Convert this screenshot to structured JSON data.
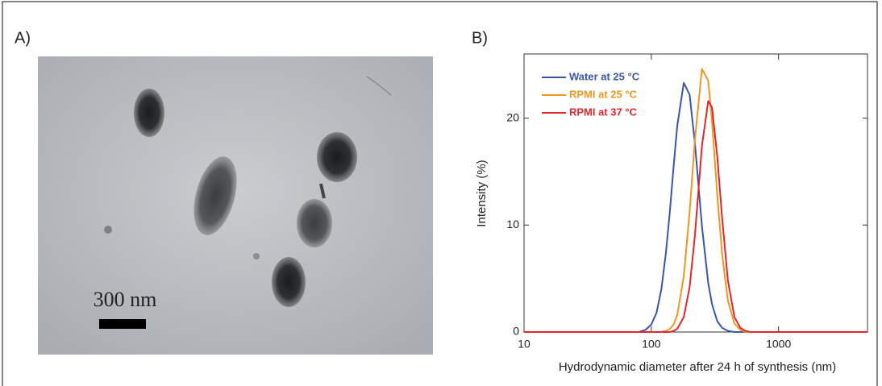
{
  "panel_a": {
    "label": "A)",
    "scale_bar": "300 nm"
  },
  "chart_data": {
    "type": "line",
    "label": "B)",
    "x_label": "Hydrodynamic diameter after 24 h of synthesis (nm)",
    "y_label": "Intensity (%)",
    "x": [
      10,
      80,
      90,
      100,
      110,
      120,
      130,
      140,
      150,
      160,
      180,
      200,
      220,
      250,
      280,
      300,
      330,
      360,
      400,
      450,
      500,
      550,
      600,
      5000
    ],
    "series": [
      {
        "name": "Water at 25 °C",
        "color": "#3a56a8",
        "values": [
          0,
          0,
          0.2,
          0.7,
          1.8,
          4.0,
          7.3,
          11.3,
          15.6,
          19.3,
          23.3,
          22.2,
          17.7,
          9.9,
          4.6,
          2.6,
          1.0,
          0.4,
          0.1,
          0,
          0,
          0,
          0,
          0
        ]
      },
      {
        "name": "RPMI at 25 °C",
        "color": "#f0961e",
        "values": [
          0,
          0,
          0,
          0,
          0,
          0,
          0.1,
          0.3,
          0.7,
          1.6,
          5.2,
          11.2,
          18.0,
          24.6,
          23.5,
          19.7,
          12.8,
          7.3,
          2.9,
          0.8,
          0.2,
          0,
          0,
          0
        ]
      },
      {
        "name": "RPMI at 37 °C",
        "color": "#e3262e",
        "values": [
          0,
          0,
          0,
          0,
          0,
          0,
          0,
          0,
          0.1,
          0.3,
          1.4,
          4.2,
          9.0,
          17.4,
          21.6,
          21.0,
          16.4,
          10.7,
          4.8,
          1.4,
          0.4,
          0.1,
          0,
          0
        ]
      }
    ],
    "xlim": [
      10,
      5000
    ],
    "ylim": [
      0,
      26
    ],
    "xscale": "log",
    "xticks": [
      10,
      100,
      1000
    ],
    "yticks": [
      0,
      10,
      20
    ],
    "legend": "upper left"
  }
}
